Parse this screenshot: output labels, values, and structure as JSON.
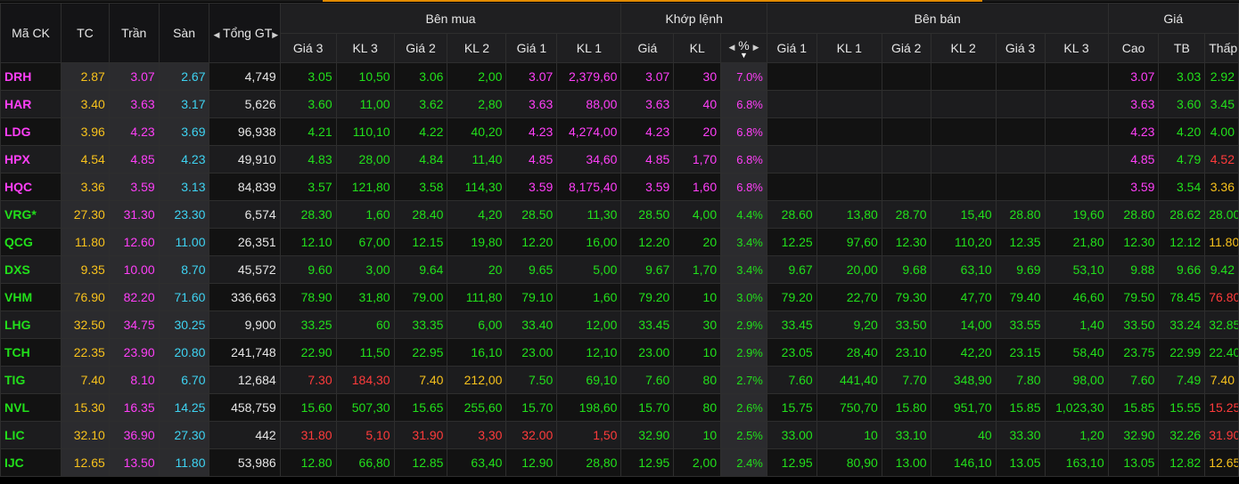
{
  "columns": {
    "symbol": "Mã CK",
    "ref": "TC",
    "ceiling": "Trần",
    "floor": "Sàn",
    "total": "Tổng GT",
    "bid_group": "Bên mua",
    "match_group": "Khớp lệnh",
    "ask_group": "Bên bán",
    "price_group": "Giá",
    "bid3": "Giá 3",
    "bidvol3": "KL 3",
    "bid2": "Giá 2",
    "bidvol2": "KL 2",
    "bid1": "Giá 1",
    "bidvol1": "KL 1",
    "match_price": "Giá",
    "match_vol": "KL",
    "pct": "%",
    "ask1": "Giá 1",
    "askvol1": "KL 1",
    "ask2": "Giá 2",
    "askvol2": "KL 2",
    "ask3": "Giá 3",
    "askvol3": "KL 3",
    "high": "Cao",
    "avg": "TB",
    "low": "Thấp"
  },
  "colors": {
    "ceiling": "#ff3ff8",
    "floor": "#3ed3f2",
    "up": "#22e01b",
    "down": "#ff3b3b",
    "reference": "#f8c21c",
    "accent_bar": "#e08a00"
  },
  "rows": [
    {
      "sym": "DRH",
      "tc": "2.87",
      "tran": "3.07",
      "san": "2.67",
      "tong": "4,749",
      "b3": "3.05",
      "bk3": "10,50",
      "b2": "3.06",
      "bk2": "2,00",
      "b1": "3.07",
      "bk1": "2,379,60",
      "mp": "3.07",
      "mk": "30",
      "pct": "7.0%",
      "s1": "",
      "sk1": "",
      "s2": "",
      "sk2": "",
      "s3": "",
      "sk3": "",
      "cao": "3.07",
      "tb": "3.03",
      "thap": "2.92",
      "cls": {
        "sym": "ce",
        "b3": "up",
        "bk3": "up",
        "b2": "up",
        "bk2": "up",
        "b1": "ce",
        "bk1": "ce",
        "mp": "ce",
        "mk": "ce",
        "pct": "ce",
        "cao": "ce",
        "tb": "up",
        "thap": "up"
      }
    },
    {
      "sym": "HAR",
      "tc": "3.40",
      "tran": "3.63",
      "san": "3.17",
      "tong": "5,626",
      "b3": "3.60",
      "bk3": "11,00",
      "b2": "3.62",
      "bk2": "2,80",
      "b1": "3.63",
      "bk1": "88,00",
      "mp": "3.63",
      "mk": "40",
      "pct": "6.8%",
      "s1": "",
      "sk1": "",
      "s2": "",
      "sk2": "",
      "s3": "",
      "sk3": "",
      "cao": "3.63",
      "tb": "3.60",
      "thap": "3.45",
      "cls": {
        "sym": "ce",
        "b3": "up",
        "bk3": "up",
        "b2": "up",
        "bk2": "up",
        "b1": "ce",
        "bk1": "ce",
        "mp": "ce",
        "mk": "ce",
        "pct": "ce",
        "cao": "ce",
        "tb": "up",
        "thap": "up"
      }
    },
    {
      "sym": "LDG",
      "tc": "3.96",
      "tran": "4.23",
      "san": "3.69",
      "tong": "96,938",
      "b3": "4.21",
      "bk3": "110,10",
      "b2": "4.22",
      "bk2": "40,20",
      "b1": "4.23",
      "bk1": "4,274,00",
      "mp": "4.23",
      "mk": "20",
      "pct": "6.8%",
      "s1": "",
      "sk1": "",
      "s2": "",
      "sk2": "",
      "s3": "",
      "sk3": "",
      "cao": "4.23",
      "tb": "4.20",
      "thap": "4.00",
      "cls": {
        "sym": "ce",
        "b3": "up",
        "bk3": "up",
        "b2": "up",
        "bk2": "up",
        "b1": "ce",
        "bk1": "ce",
        "mp": "ce",
        "mk": "ce",
        "pct": "ce",
        "cao": "ce",
        "tb": "up",
        "thap": "up"
      }
    },
    {
      "sym": "HPX",
      "tc": "4.54",
      "tran": "4.85",
      "san": "4.23",
      "tong": "49,910",
      "b3": "4.83",
      "bk3": "28,00",
      "b2": "4.84",
      "bk2": "11,40",
      "b1": "4.85",
      "bk1": "34,60",
      "mp": "4.85",
      "mk": "1,70",
      "pct": "6.8%",
      "s1": "",
      "sk1": "",
      "s2": "",
      "sk2": "",
      "s3": "",
      "sk3": "",
      "cao": "4.85",
      "tb": "4.79",
      "thap": "4.52",
      "cls": {
        "sym": "ce",
        "b3": "up",
        "bk3": "up",
        "b2": "up",
        "bk2": "up",
        "b1": "ce",
        "bk1": "ce",
        "mp": "ce",
        "mk": "ce",
        "pct": "ce",
        "cao": "ce",
        "tb": "up",
        "thap": "down"
      }
    },
    {
      "sym": "HQC",
      "tc": "3.36",
      "tran": "3.59",
      "san": "3.13",
      "tong": "84,839",
      "b3": "3.57",
      "bk3": "121,80",
      "b2": "3.58",
      "bk2": "114,30",
      "b1": "3.59",
      "bk1": "8,175,40",
      "mp": "3.59",
      "mk": "1,60",
      "pct": "6.8%",
      "s1": "",
      "sk1": "",
      "s2": "",
      "sk2": "",
      "s3": "",
      "sk3": "",
      "cao": "3.59",
      "tb": "3.54",
      "thap": "3.36",
      "cls": {
        "sym": "ce",
        "b3": "up",
        "bk3": "up",
        "b2": "up",
        "bk2": "up",
        "b1": "ce",
        "bk1": "ce",
        "mp": "ce",
        "mk": "ce",
        "pct": "ce",
        "cao": "ce",
        "tb": "up",
        "thap": "ref"
      }
    },
    {
      "sym": "VRG*",
      "tc": "27.30",
      "tran": "31.30",
      "san": "23.30",
      "tong": "6,574",
      "b3": "28.30",
      "bk3": "1,60",
      "b2": "28.40",
      "bk2": "4,20",
      "b1": "28.50",
      "bk1": "11,30",
      "mp": "28.50",
      "mk": "4,00",
      "pct": "4.4%",
      "s1": "28.60",
      "sk1": "13,80",
      "s2": "28.70",
      "sk2": "15,40",
      "s3": "28.80",
      "sk3": "19,60",
      "cao": "28.80",
      "tb": "28.62",
      "thap": "28.00",
      "cls": {
        "sym": "up"
      }
    },
    {
      "sym": "QCG",
      "tc": "11.80",
      "tran": "12.60",
      "san": "11.00",
      "tong": "26,351",
      "b3": "12.10",
      "bk3": "67,00",
      "b2": "12.15",
      "bk2": "19,80",
      "b1": "12.20",
      "bk1": "16,00",
      "mp": "12.20",
      "mk": "20",
      "pct": "3.4%",
      "s1": "12.25",
      "sk1": "97,60",
      "s2": "12.30",
      "sk2": "110,20",
      "s3": "12.35",
      "sk3": "21,80",
      "cao": "12.30",
      "tb": "12.12",
      "thap": "11.80",
      "cls": {
        "sym": "up",
        "thap": "ref"
      }
    },
    {
      "sym": "DXS",
      "tc": "9.35",
      "tran": "10.00",
      "san": "8.70",
      "tong": "45,572",
      "b3": "9.60",
      "bk3": "3,00",
      "b2": "9.64",
      "bk2": "20",
      "b1": "9.65",
      "bk1": "5,00",
      "mp": "9.67",
      "mk": "1,70",
      "pct": "3.4%",
      "s1": "9.67",
      "sk1": "20,00",
      "s2": "9.68",
      "sk2": "63,10",
      "s3": "9.69",
      "sk3": "53,10",
      "cao": "9.88",
      "tb": "9.66",
      "thap": "9.42",
      "cls": {
        "sym": "up"
      }
    },
    {
      "sym": "VHM",
      "tc": "76.90",
      "tran": "82.20",
      "san": "71.60",
      "tong": "336,663",
      "b3": "78.90",
      "bk3": "31,80",
      "b2": "79.00",
      "bk2": "111,80",
      "b1": "79.10",
      "bk1": "1,60",
      "mp": "79.20",
      "mk": "10",
      "pct": "3.0%",
      "s1": "79.20",
      "sk1": "22,70",
      "s2": "79.30",
      "sk2": "47,70",
      "s3": "79.40",
      "sk3": "46,60",
      "cao": "79.50",
      "tb": "78.45",
      "thap": "76.80",
      "cls": {
        "sym": "up",
        "thap": "down"
      }
    },
    {
      "sym": "LHG",
      "tc": "32.50",
      "tran": "34.75",
      "san": "30.25",
      "tong": "9,900",
      "b3": "33.25",
      "bk3": "60",
      "b2": "33.35",
      "bk2": "6,00",
      "b1": "33.40",
      "bk1": "12,00",
      "mp": "33.45",
      "mk": "30",
      "pct": "2.9%",
      "s1": "33.45",
      "sk1": "9,20",
      "s2": "33.50",
      "sk2": "14,00",
      "s3": "33.55",
      "sk3": "1,40",
      "cao": "33.50",
      "tb": "33.24",
      "thap": "32.85",
      "cls": {
        "sym": "up"
      }
    },
    {
      "sym": "TCH",
      "tc": "22.35",
      "tran": "23.90",
      "san": "20.80",
      "tong": "241,748",
      "b3": "22.90",
      "bk3": "11,50",
      "b2": "22.95",
      "bk2": "16,10",
      "b1": "23.00",
      "bk1": "12,10",
      "mp": "23.00",
      "mk": "10",
      "pct": "2.9%",
      "s1": "23.05",
      "sk1": "28,40",
      "s2": "23.10",
      "sk2": "42,20",
      "s3": "23.15",
      "sk3": "58,40",
      "cao": "23.75",
      "tb": "22.99",
      "thap": "22.40",
      "cls": {
        "sym": "up"
      }
    },
    {
      "sym": "TIG",
      "tc": "7.40",
      "tran": "8.10",
      "san": "6.70",
      "tong": "12,684",
      "b3": "7.30",
      "bk3": "184,30",
      "b2": "7.40",
      "bk2": "212,00",
      "b1": "7.50",
      "bk1": "69,10",
      "mp": "7.60",
      "mk": "80",
      "pct": "2.7%",
      "s1": "7.60",
      "sk1": "441,40",
      "s2": "7.70",
      "sk2": "348,90",
      "s3": "7.80",
      "sk3": "98,00",
      "cao": "7.60",
      "tb": "7.49",
      "thap": "7.40",
      "cls": {
        "sym": "up",
        "b3": "down",
        "bk3": "down",
        "b2": "ref",
        "bk2": "ref",
        "thap": "ref"
      }
    },
    {
      "sym": "NVL",
      "tc": "15.30",
      "tran": "16.35",
      "san": "14.25",
      "tong": "458,759",
      "b3": "15.60",
      "bk3": "507,30",
      "b2": "15.65",
      "bk2": "255,60",
      "b1": "15.70",
      "bk1": "198,60",
      "mp": "15.70",
      "mk": "80",
      "pct": "2.6%",
      "s1": "15.75",
      "sk1": "750,70",
      "s2": "15.80",
      "sk2": "951,70",
      "s3": "15.85",
      "sk3": "1,023,30",
      "cao": "15.85",
      "tb": "15.55",
      "thap": "15.25",
      "cls": {
        "sym": "up",
        "thap": "down"
      }
    },
    {
      "sym": "LIC",
      "tc": "32.10",
      "tran": "36.90",
      "san": "27.30",
      "tong": "442",
      "b3": "31.80",
      "bk3": "5,10",
      "b2": "31.90",
      "bk2": "3,30",
      "b1": "32.00",
      "bk1": "1,50",
      "mp": "32.90",
      "mk": "10",
      "pct": "2.5%",
      "s1": "33.00",
      "sk1": "10",
      "s2": "33.10",
      "sk2": "40",
      "s3": "33.30",
      "sk3": "1,20",
      "cao": "32.90",
      "tb": "32.26",
      "thap": "31.90",
      "cls": {
        "sym": "up",
        "b3": "down",
        "bk3": "down",
        "b2": "down",
        "bk2": "down",
        "b1": "down",
        "bk1": "down",
        "thap": "down"
      }
    },
    {
      "sym": "IJC",
      "tc": "12.65",
      "tran": "13.50",
      "san": "11.80",
      "tong": "53,986",
      "b3": "12.80",
      "bk3": "66,80",
      "b2": "12.85",
      "bk2": "63,40",
      "b1": "12.90",
      "bk1": "28,80",
      "mp": "12.95",
      "mk": "2,00",
      "pct": "2.4%",
      "s1": "12.95",
      "sk1": "80,90",
      "s2": "13.00",
      "sk2": "146,10",
      "s3": "13.05",
      "sk3": "163,10",
      "cao": "13.05",
      "tb": "12.82",
      "thap": "12.65",
      "cls": {
        "sym": "up",
        "thap": "ref"
      }
    }
  ]
}
